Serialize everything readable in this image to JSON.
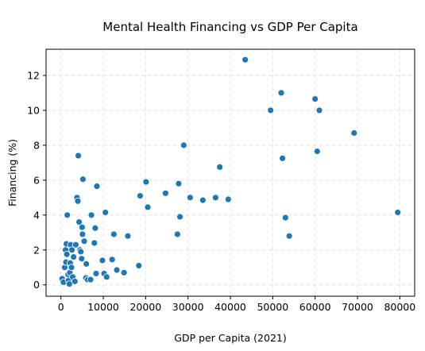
{
  "chart_data": {
    "type": "scatter",
    "title": "Mental Health Financing vs GDP Per Capita",
    "xlabel": "GDP per Capita (2021)",
    "ylabel": "Financing (%)",
    "xlim": [
      -3500,
      83500
    ],
    "ylim": [
      -0.65,
      13.5
    ],
    "xticks": [
      0,
      10000,
      20000,
      30000,
      40000,
      50000,
      60000,
      70000,
      80000
    ],
    "yticks": [
      0,
      2,
      4,
      6,
      8,
      10,
      12
    ],
    "grid": true,
    "marker_color": "#1f77b4",
    "points": [
      {
        "x": 300,
        "y": 0.35
      },
      {
        "x": 600,
        "y": 0.15
      },
      {
        "x": 900,
        "y": 1.0
      },
      {
        "x": 1100,
        "y": 2.0
      },
      {
        "x": 1200,
        "y": 1.3
      },
      {
        "x": 1300,
        "y": 2.35
      },
      {
        "x": 1400,
        "y": 1.75
      },
      {
        "x": 1500,
        "y": 4.0
      },
      {
        "x": 1700,
        "y": 0.6
      },
      {
        "x": 1800,
        "y": 0.25
      },
      {
        "x": 2000,
        "y": 0.05
      },
      {
        "x": 2100,
        "y": 0.7
      },
      {
        "x": 2200,
        "y": 1.25
      },
      {
        "x": 2300,
        "y": 2.3
      },
      {
        "x": 2500,
        "y": 1.0
      },
      {
        "x": 2600,
        "y": 2.0
      },
      {
        "x": 2800,
        "y": 0.45
      },
      {
        "x": 3000,
        "y": 1.6
      },
      {
        "x": 3300,
        "y": 0.2
      },
      {
        "x": 3500,
        "y": 2.3
      },
      {
        "x": 3800,
        "y": 5.0
      },
      {
        "x": 4000,
        "y": 4.8
      },
      {
        "x": 4100,
        "y": 7.4
      },
      {
        "x": 4300,
        "y": 3.6
      },
      {
        "x": 4500,
        "y": 2.0
      },
      {
        "x": 4700,
        "y": 1.9
      },
      {
        "x": 4900,
        "y": 1.5
      },
      {
        "x": 5000,
        "y": 3.3
      },
      {
        "x": 5100,
        "y": 2.9
      },
      {
        "x": 5200,
        "y": 6.05
      },
      {
        "x": 5500,
        "y": 2.5
      },
      {
        "x": 5900,
        "y": 0.4
      },
      {
        "x": 6000,
        "y": 1.2
      },
      {
        "x": 6300,
        "y": 0.3
      },
      {
        "x": 7000,
        "y": 0.3
      },
      {
        "x": 7200,
        "y": 4.0
      },
      {
        "x": 7900,
        "y": 2.4
      },
      {
        "x": 8100,
        "y": 3.25
      },
      {
        "x": 8300,
        "y": 0.65
      },
      {
        "x": 8500,
        "y": 5.65
      },
      {
        "x": 9800,
        "y": 1.4
      },
      {
        "x": 10200,
        "y": 0.65
      },
      {
        "x": 10500,
        "y": 4.15
      },
      {
        "x": 10800,
        "y": 0.45
      },
      {
        "x": 12100,
        "y": 1.45
      },
      {
        "x": 12500,
        "y": 2.9
      },
      {
        "x": 13200,
        "y": 0.85
      },
      {
        "x": 14900,
        "y": 0.7
      },
      {
        "x": 15800,
        "y": 2.8
      },
      {
        "x": 18400,
        "y": 1.1
      },
      {
        "x": 18700,
        "y": 5.1
      },
      {
        "x": 20100,
        "y": 5.9
      },
      {
        "x": 20500,
        "y": 4.45
      },
      {
        "x": 24700,
        "y": 5.25
      },
      {
        "x": 27500,
        "y": 2.9
      },
      {
        "x": 27800,
        "y": 5.8
      },
      {
        "x": 28100,
        "y": 3.9
      },
      {
        "x": 29000,
        "y": 8.0
      },
      {
        "x": 30500,
        "y": 5.0
      },
      {
        "x": 33500,
        "y": 4.85
      },
      {
        "x": 36500,
        "y": 5.0
      },
      {
        "x": 37500,
        "y": 6.75
      },
      {
        "x": 39500,
        "y": 4.9
      },
      {
        "x": 43500,
        "y": 12.9
      },
      {
        "x": 49500,
        "y": 10.0
      },
      {
        "x": 52000,
        "y": 11.0
      },
      {
        "x": 52300,
        "y": 7.25
      },
      {
        "x": 53000,
        "y": 3.85
      },
      {
        "x": 53900,
        "y": 2.8
      },
      {
        "x": 60000,
        "y": 10.65
      },
      {
        "x": 60500,
        "y": 7.65
      },
      {
        "x": 61000,
        "y": 10.0
      },
      {
        "x": 69200,
        "y": 8.7
      },
      {
        "x": 79500,
        "y": 4.15
      }
    ]
  }
}
